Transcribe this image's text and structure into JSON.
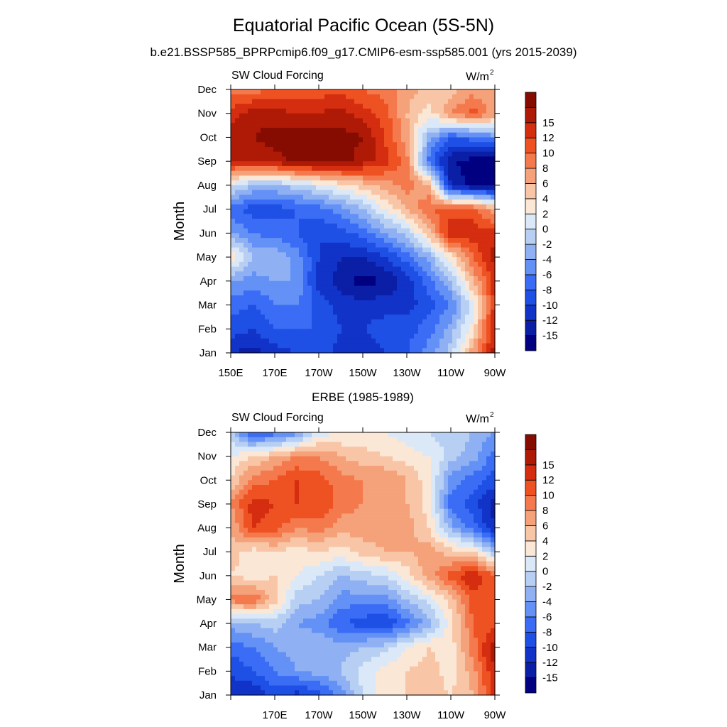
{
  "title": "Equatorial Pacific Ocean (5S-5N)",
  "subtitle": "b.e21.BSSP585_BPRPcmip6.f09_g17.CMIP6-esm-ssp585.001 (yrs 2015-2039)",
  "colors": [
    "#000080",
    "#0a1ea6",
    "#1133c7",
    "#1f50e6",
    "#3a6cf5",
    "#6391f5",
    "#8fb0f3",
    "#b7cff3",
    "#dbe8f7",
    "#fbe7d6",
    "#f8c6a7",
    "#f5a17a",
    "#f47a4e",
    "#ef5222",
    "#d42d10",
    "#ae1a06",
    "#860c02"
  ],
  "colorbar_labels": [
    "-15",
    "-12",
    "-10",
    "-8",
    "-6",
    "-4",
    "-2",
    "0",
    "2",
    "4",
    "6",
    "8",
    "10",
    "12",
    "15"
  ],
  "chart_data": [
    {
      "type": "heatmap",
      "title": "",
      "left_label": "SW Cloud Forcing",
      "right_label": "W/m",
      "right_label_sup": "2",
      "ylabel": "Month",
      "xlabel": "",
      "x_ticks": [
        "150E",
        "170E",
        "170W",
        "150W",
        "130W",
        "110W",
        "90W"
      ],
      "y_ticks": [
        "Jan",
        "Feb",
        "Mar",
        "Apr",
        "May",
        "Jun",
        "Jul",
        "Aug",
        "Sep",
        "Oct",
        "Nov",
        "Dec"
      ],
      "x_range": [
        150,
        270
      ],
      "y_range": [
        1,
        12
      ],
      "grid": [
        [
          -13,
          -14,
          -12,
          -11,
          -10,
          -12,
          -12,
          -11,
          -9,
          -6,
          -2,
          6,
          14
        ],
        [
          -10,
          -11,
          -9,
          -9,
          -9,
          -11,
          -11,
          -10,
          -10,
          -8,
          -4,
          2,
          13
        ],
        [
          -8,
          -9,
          -7,
          -7,
          -10,
          -12,
          -12,
          -12,
          -12,
          -10,
          -7,
          0,
          12
        ],
        [
          -5,
          -6,
          -5,
          -5,
          -12,
          -14,
          -16,
          -15,
          -12,
          -8,
          -3,
          5,
          12
        ],
        [
          3,
          -3,
          -3,
          -6,
          -11,
          -13,
          -13,
          -11,
          -8,
          -4,
          2,
          9,
          14
        ],
        [
          -5,
          -7,
          -8,
          -9,
          -11,
          -10,
          -8,
          -5,
          -2,
          4,
          13,
          12,
          12
        ],
        [
          -8,
          -10,
          -10,
          -9,
          -8,
          -6,
          -3,
          1,
          5,
          9,
          10,
          10,
          5
        ],
        [
          0,
          -3,
          -3,
          -2,
          0,
          2,
          4,
          6,
          8,
          5,
          -13,
          -16,
          -16
        ],
        [
          13,
          13,
          14,
          16,
          16,
          16,
          14,
          12,
          8,
          -8,
          -15,
          -16,
          -16
        ],
        [
          14,
          15,
          16,
          16,
          16,
          16,
          15,
          11,
          6,
          -4,
          -9,
          -8,
          -6
        ],
        [
          12,
          14,
          14,
          13,
          13,
          14,
          12,
          10,
          5,
          2,
          7,
          10,
          6
        ],
        [
          8,
          8,
          9,
          9,
          10,
          10,
          9,
          8,
          6,
          4,
          4,
          6,
          5
        ]
      ]
    },
    {
      "type": "heatmap",
      "title": "ERBE (1985-1989)",
      "left_label": "SW Cloud Forcing",
      "right_label": "W/m",
      "right_label_sup": "2",
      "ylabel": "Month",
      "xlabel": "",
      "x_ticks": [
        "170E",
        "170W",
        "150W",
        "130W",
        "110W",
        "90W"
      ],
      "y_ticks": [
        "Jan",
        "Feb",
        "Mar",
        "Apr",
        "May",
        "Jun",
        "Jul",
        "Aug",
        "Sep",
        "Oct",
        "Nov",
        "Dec"
      ],
      "x_range": [
        150,
        270
      ],
      "y_range": [
        1,
        12
      ],
      "grid": [
        [
          -12,
          -13,
          -10,
          -12,
          -10,
          -6,
          -1,
          2,
          3,
          4,
          3,
          5,
          12
        ],
        [
          -11,
          -9,
          -7,
          -5,
          -4,
          -3,
          0,
          2,
          3,
          4,
          2,
          6,
          13
        ],
        [
          -8,
          -7,
          -5,
          -4,
          -3,
          -4,
          -3,
          -2,
          1,
          3,
          2,
          8,
          15
        ],
        [
          -4,
          -3,
          -2,
          -5,
          -6,
          -9,
          -10,
          -11,
          -8,
          -4,
          2,
          9,
          10
        ],
        [
          8,
          9,
          4,
          -2,
          -3,
          -6,
          -6,
          -6,
          -3,
          0,
          4,
          10,
          9
        ],
        [
          3,
          2,
          3,
          1,
          -1,
          -3,
          -2,
          -1,
          2,
          6,
          10,
          13,
          9
        ],
        [
          4,
          2,
          3,
          2,
          3,
          2,
          4,
          5,
          5,
          6,
          4,
          3,
          -3
        ],
        [
          5,
          11,
          10,
          7,
          8,
          6,
          6,
          6,
          6,
          3,
          -4,
          -8,
          -13
        ],
        [
          7,
          12,
          11,
          11,
          11,
          8,
          7,
          6,
          5,
          2,
          -8,
          -10,
          -14
        ],
        [
          3,
          8,
          9,
          11,
          10,
          8,
          7,
          7,
          5,
          2,
          -6,
          -8,
          -10
        ],
        [
          1,
          3,
          5,
          7,
          7,
          5,
          4,
          3,
          2,
          1,
          -2,
          -4,
          -8
        ],
        [
          -2,
          -10,
          -8,
          -6,
          0,
          1,
          1,
          1,
          0,
          -1,
          -2,
          -3,
          -5
        ]
      ]
    }
  ]
}
